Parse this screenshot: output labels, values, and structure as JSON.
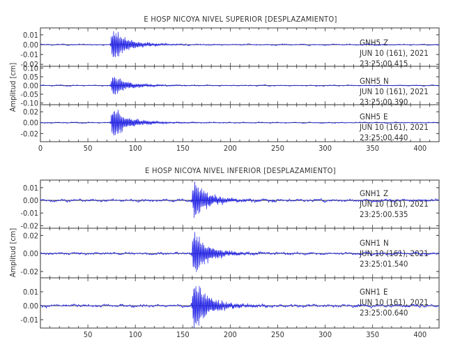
{
  "colors": {
    "trace": "#1f1fe6",
    "axis": "#333333",
    "background": "#ffffff"
  },
  "chart_data": [
    {
      "type": "line",
      "title": "E HOSP NICOYA NIVEL SUPERIOR [DESPLAZAMIENTO]",
      "ylabel": "Amplitud [cm]",
      "xlim": [
        0,
        420
      ],
      "xticks": [
        "0",
        "50",
        "100",
        "150",
        "200",
        "250",
        "300",
        "350",
        "400"
      ],
      "series": [
        {
          "station": "GNH5",
          "component": "Z",
          "date": "JUN 10 (161), 2021",
          "time": "23:25:00.415",
          "ylim": [
            -0.022,
            0.017
          ],
          "yticks": [
            "0.01",
            "0.00",
            "-0.01",
            "-0.02"
          ],
          "onset_x": 74.5,
          "peak_amplitude": 0.016,
          "noise_amplitude": 0.0004
        },
        {
          "station": "GNH5",
          "component": "N",
          "date": "JUN 10 (161), 2021",
          "time": "23:25:00.390",
          "ylim": [
            -0.11,
            0.11
          ],
          "yticks": [
            "0.10",
            "0.05",
            "0.00",
            "-0.05",
            "-0.10"
          ],
          "onset_x": 74.5,
          "peak_amplitude": 0.06,
          "noise_amplitude": 0.002
        },
        {
          "station": "GNH5",
          "component": "E",
          "date": "JUN 10 (161), 2021",
          "time": "23:25:00.440",
          "ylim": [
            -0.035,
            0.033
          ],
          "yticks": [
            "0.02",
            "0.00",
            "-0.02"
          ],
          "onset_x": 74.5,
          "peak_amplitude": 0.03,
          "noise_amplitude": 0.0006
        }
      ]
    },
    {
      "type": "line",
      "title": "E HOSP NICOYA NIVEL INFERIOR [DESPLAZAMIENTO]",
      "ylabel": "Amplitud [cm]",
      "xlim": [
        0,
        420
      ],
      "xticks": [
        "50",
        "100",
        "150",
        "200",
        "250",
        "300",
        "350",
        "400"
      ],
      "series": [
        {
          "station": "GNH1",
          "component": "Z",
          "date": "JUN 10 (161), 2021",
          "time": "23:25:00.535",
          "ylim": [
            -0.022,
            0.016
          ],
          "yticks": [
            "0.01",
            "0.00",
            "-0.01",
            "-0.02"
          ],
          "onset_x": 160,
          "peak_amplitude": 0.015,
          "noise_amplitude": 0.0006
        },
        {
          "station": "GNH1",
          "component": "N",
          "date": "JUN 10 (161), 2021",
          "time": "23:25:01.540",
          "ylim": [
            -0.027,
            0.028
          ],
          "yticks": [
            "0.02",
            "0.00",
            "-0.02"
          ],
          "onset_x": 160,
          "peak_amplitude": 0.024,
          "noise_amplitude": 0.0008
        },
        {
          "station": "GNH1",
          "component": "E",
          "date": "JUN 10 (161), 2021",
          "time": "23:25:00.640",
          "ylim": [
            -0.016,
            0.02
          ],
          "yticks": [
            "0.01",
            "0.00",
            "-0.01"
          ],
          "onset_x": 160,
          "peak_amplitude": 0.019,
          "noise_amplitude": 0.0006
        }
      ]
    }
  ]
}
